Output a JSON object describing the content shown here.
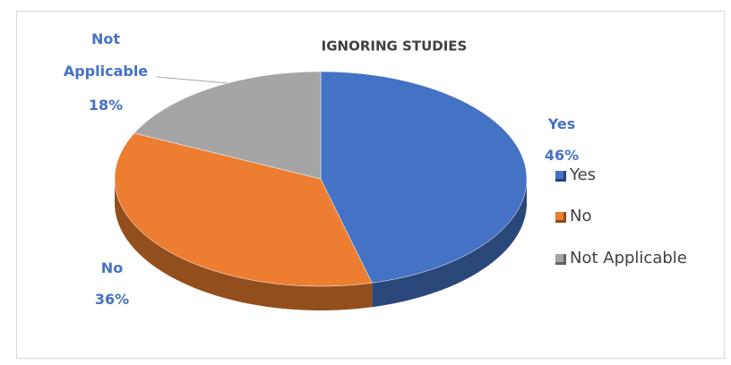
{
  "chart_data": {
    "type": "pie3d",
    "title": "IGNORING STUDIES",
    "categories": [
      "Yes",
      "No",
      "Not Applicable"
    ],
    "values": [
      46,
      36,
      18
    ],
    "value_labels": [
      "46%",
      "36%",
      "18%"
    ],
    "colors": [
      "#4472c4",
      "#ed7d31",
      "#a5a5a5"
    ],
    "legend": "right"
  }
}
